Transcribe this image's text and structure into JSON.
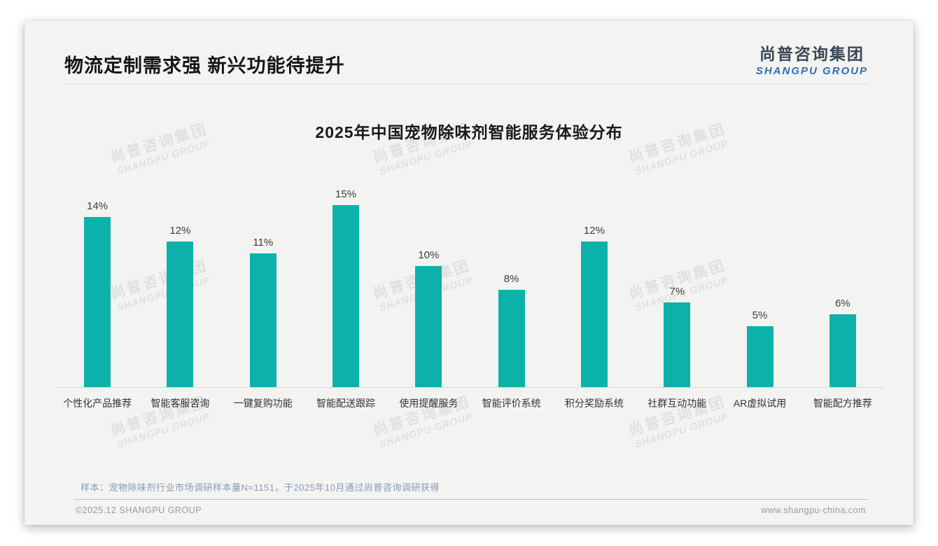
{
  "header": {
    "title": "物流定制需求强 新兴功能待提升"
  },
  "logo": {
    "cn": "尚普咨询集团",
    "en": "SHANGPU GROUP"
  },
  "watermark": {
    "cn": "尚普咨询集团",
    "en": "SHANGPU GROUP"
  },
  "chart_data": {
    "type": "bar",
    "title": "2025年中国宠物除味剂智能服务体验分布",
    "categories": [
      "个性化产品推荐",
      "智能客服咨询",
      "一键复购功能",
      "智能配送跟踪",
      "使用提醒服务",
      "智能评价系统",
      "积分奖励系统",
      "社群互动功能",
      "AR虚拟试用",
      "智能配方推荐"
    ],
    "values": [
      14,
      12,
      11,
      15,
      10,
      8,
      12,
      7,
      5,
      6
    ],
    "value_suffix": "%",
    "bar_color": "#0cb2aa",
    "ylim": [
      0,
      16
    ],
    "grid": false,
    "legend": "none",
    "data_labels": true
  },
  "note": "样本：宠物除味剂行业市场调研样本量N=1151，于2025年10月通过尚普咨询调研获得",
  "footer": {
    "left": "©2025.12 SHANGPU GROUP",
    "right": "www.shangpu-china.com"
  }
}
